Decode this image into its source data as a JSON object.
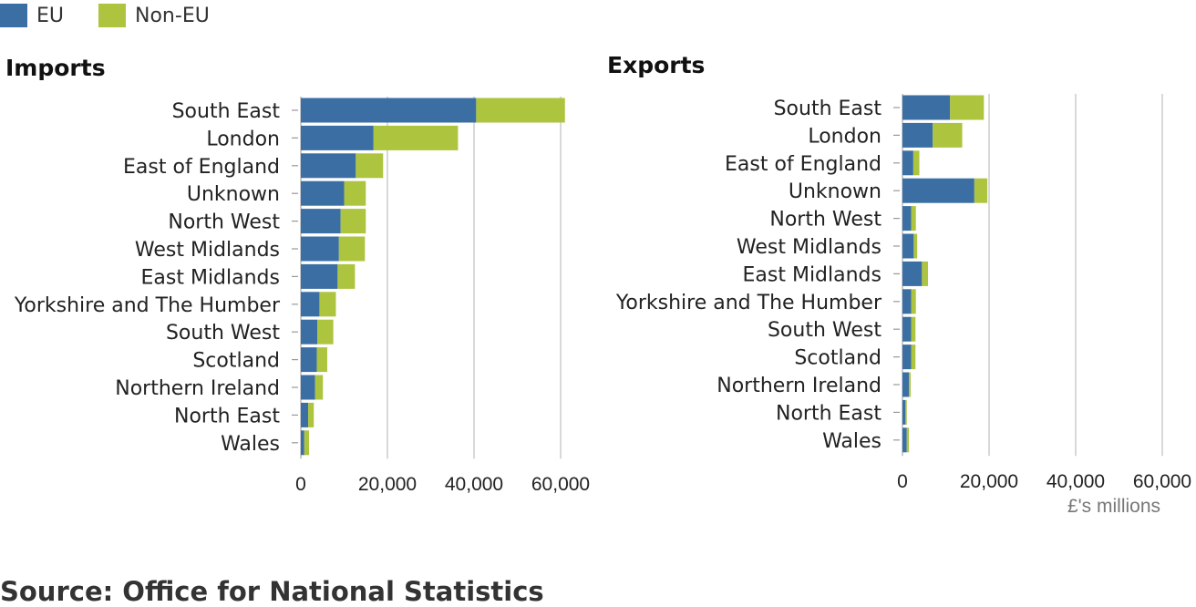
{
  "legend": [
    {
      "label": "EU",
      "color": "#3b6fa4"
    },
    {
      "label": "Non-EU",
      "color": "#adc43f"
    }
  ],
  "source": "Source: Office for National Statistics",
  "chart_data": [
    {
      "type": "bar",
      "orientation": "horizontal",
      "stacked": true,
      "title": "Imports",
      "xlabel": "",
      "xlim": [
        0,
        60000
      ],
      "xticks": [
        "0",
        "20,000",
        "40,000",
        "60,000"
      ],
      "grid": true,
      "categories": [
        "South East",
        "London",
        "East of England",
        "Unknown",
        "North West",
        "West Midlands",
        "East Midlands",
        "Yorkshire and The Humber",
        "South West",
        "Scotland",
        "Northern Ireland",
        "North East",
        "Wales"
      ],
      "series": [
        {
          "name": "EU",
          "color": "#3b6fa4",
          "values": [
            40500,
            16800,
            12700,
            10000,
            9200,
            8800,
            8500,
            4300,
            3800,
            3700,
            3300,
            1700,
            800
          ]
        },
        {
          "name": "Non-EU",
          "color": "#adc43f",
          "values": [
            20500,
            19500,
            6300,
            5000,
            5800,
            6000,
            4000,
            3800,
            3700,
            2400,
            1800,
            1300,
            1100
          ]
        }
      ]
    },
    {
      "type": "bar",
      "orientation": "horizontal",
      "stacked": true,
      "title": "Exports",
      "xlabel": "£'s millions",
      "xlim": [
        0,
        60000
      ],
      "xticks": [
        "0",
        "20,000",
        "40,000",
        "60,000"
      ],
      "grid": true,
      "categories": [
        "South East",
        "London",
        "East of England",
        "Unknown",
        "North West",
        "West Midlands",
        "East Midlands",
        "Yorkshire and The Humber",
        "South West",
        "Scotland",
        "Northern Ireland",
        "North East",
        "Wales"
      ],
      "series": [
        {
          "name": "EU",
          "color": "#3b6fa4",
          "values": [
            11000,
            7000,
            2500,
            16600,
            2000,
            2600,
            4500,
            2000,
            2000,
            2000,
            1500,
            700,
            1000
          ]
        },
        {
          "name": "Non-EU",
          "color": "#adc43f",
          "values": [
            7800,
            6800,
            1400,
            3000,
            1100,
            800,
            1400,
            1100,
            1000,
            1000,
            400,
            300,
            500
          ]
        }
      ]
    }
  ]
}
